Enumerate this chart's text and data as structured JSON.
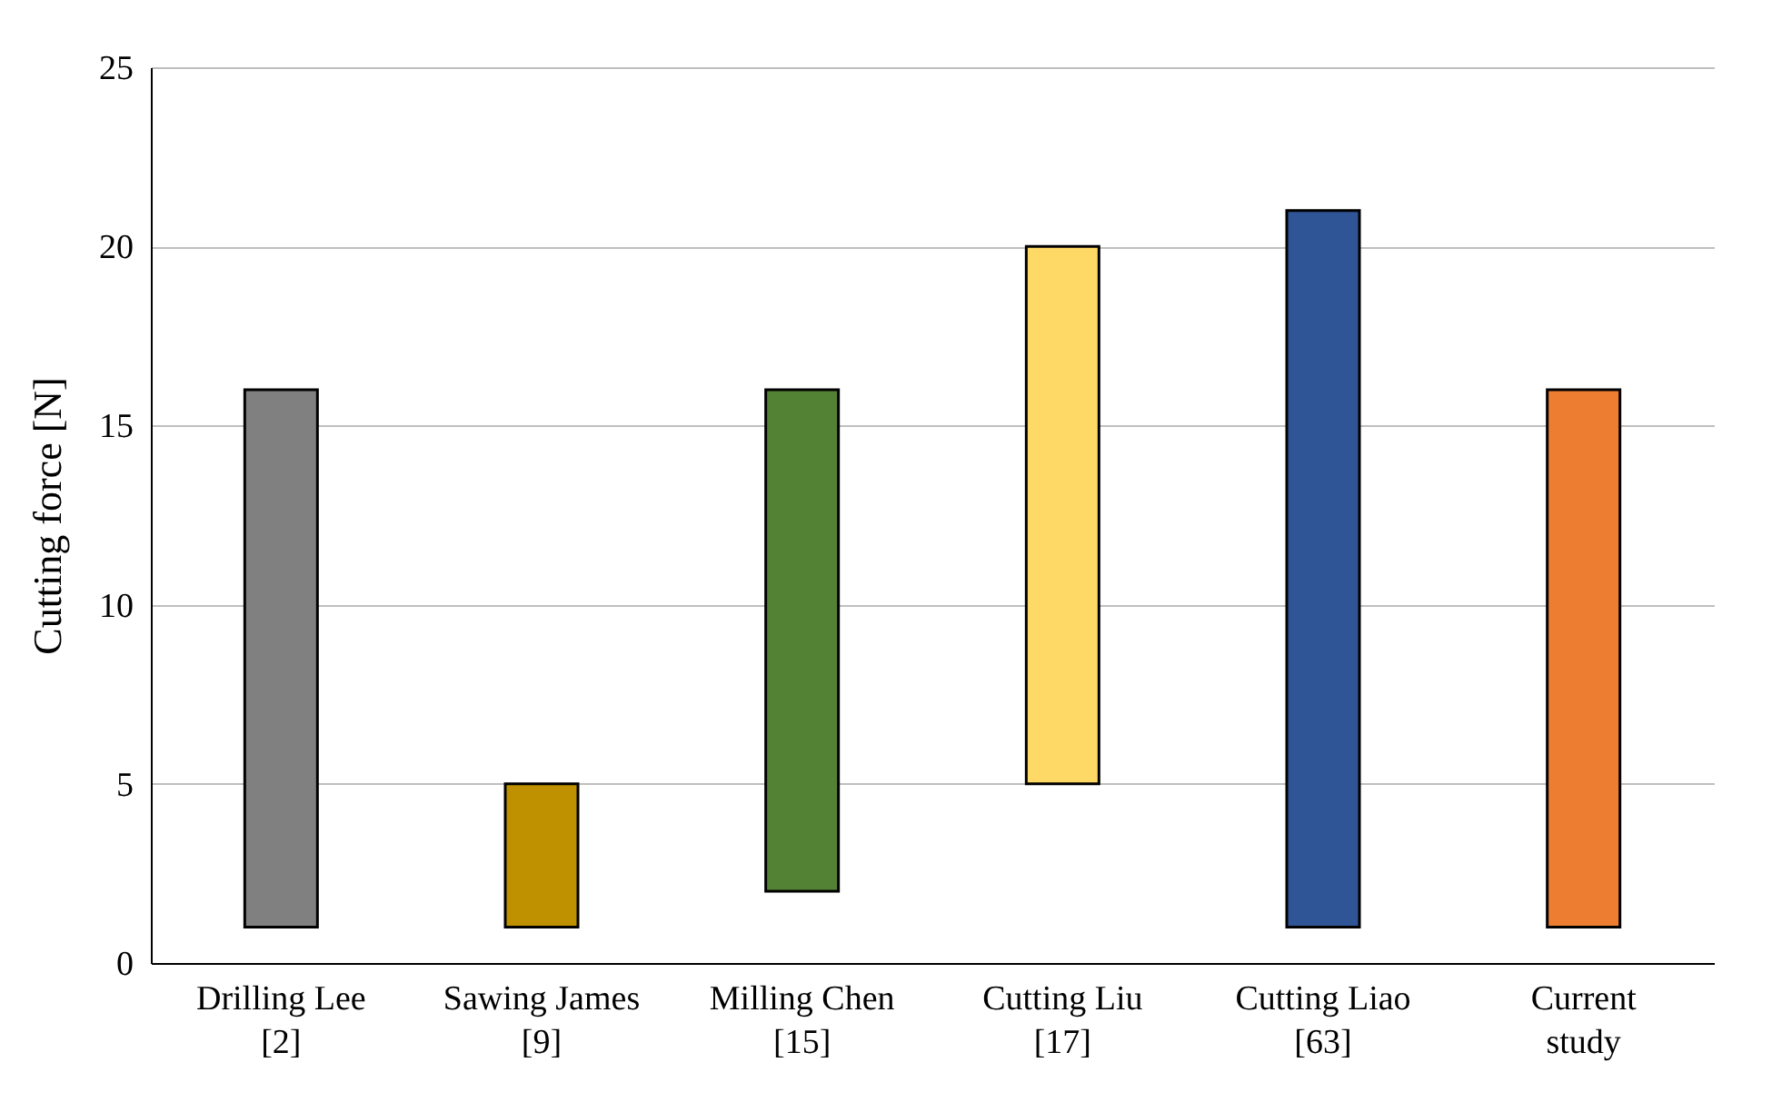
{
  "chart_data": {
    "type": "bar",
    "ylabel": "Cutting force [N]",
    "categories": [
      "Drilling Lee [2]",
      "Sawing James [9]",
      "Milling Chen [15]",
      "Cutting Liu [17]",
      "Cutting Liao [63]",
      "Current study"
    ],
    "base": [
      1,
      1,
      2,
      5,
      1,
      1
    ],
    "values": [
      15,
      4,
      14,
      15,
      20,
      15
    ],
    "colors": [
      "#808080",
      "#bf9000",
      "#548235",
      "#ffd966",
      "#2f5597",
      "#ed7d31"
    ],
    "ylim": [
      0,
      25
    ],
    "yticks": [
      0,
      5,
      10,
      15,
      20,
      25
    ],
    "grid": "y"
  }
}
